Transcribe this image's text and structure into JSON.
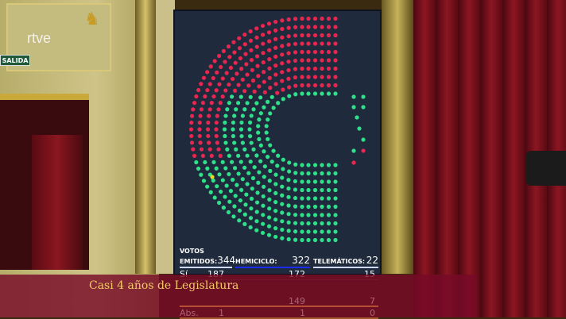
{
  "broadcaster": {
    "logo": "rtve",
    "exit_sign": "SALIDA"
  },
  "banner": {
    "title": "Casi 4 años de Legislatura"
  },
  "board": {
    "votos_label": "VOTOS",
    "emitidos_label": "EMITIDOS:",
    "emitidos": "344",
    "hemiciclo_label": "HEMICICLO:",
    "hemiciclo": "322",
    "telematicos_label": "TELEMÁTICOS:",
    "telematicos": "22",
    "rows": [
      {
        "label": "Sí",
        "total": "187",
        "hemiciclo": "172",
        "telematicos": "15"
      },
      {
        "label": "",
        "total": "",
        "hemiciclo": "149",
        "telematicos": "7"
      },
      {
        "label": "Abs.",
        "total": "1",
        "hemiciclo": "1",
        "telematicos": "0"
      }
    ],
    "colors": {
      "yes": "#2fe08a",
      "no": "#e8264f",
      "abstain": "#e8d42a",
      "background": "#1f2b3d"
    }
  }
}
